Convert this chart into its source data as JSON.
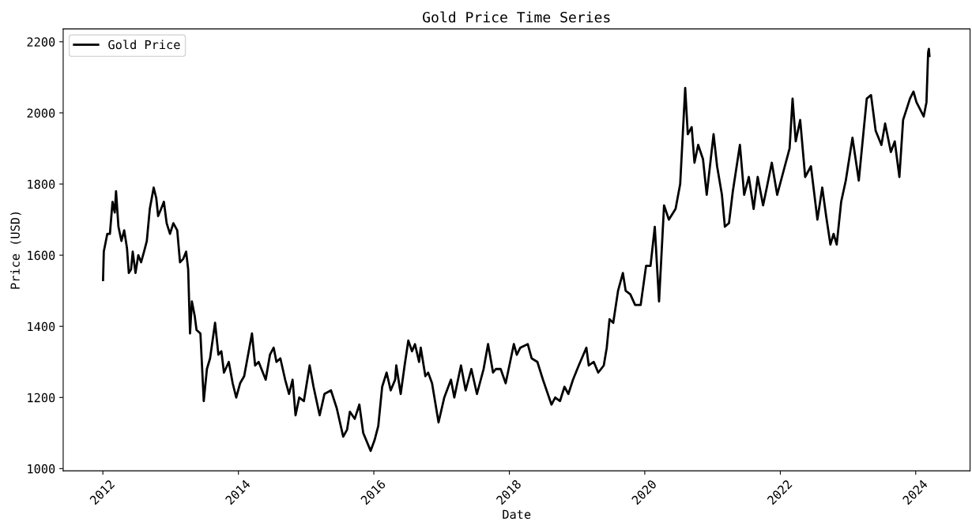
{
  "chart_data": {
    "type": "line",
    "title": "Gold Price Time Series",
    "xlabel": "Date",
    "ylabel": "Price (USD)",
    "xlim": [
      "2011-06-01",
      "2024-10-20"
    ],
    "xticks": [
      {
        "value": "2012-01-01",
        "label": "2012"
      },
      {
        "value": "2014-01-01",
        "label": "2014"
      },
      {
        "value": "2016-01-01",
        "label": "2016"
      },
      {
        "value": "2018-01-01",
        "label": "2018"
      },
      {
        "value": "2020-01-01",
        "label": "2020"
      },
      {
        "value": "2022-01-01",
        "label": "2022"
      },
      {
        "value": "2024-01-01",
        "label": "2024"
      }
    ],
    "ylim": [
      994,
      2236
    ],
    "yticks": [
      1000,
      1200,
      1400,
      1600,
      1800,
      2000,
      2200
    ],
    "legend": "top left",
    "grid": false,
    "line_style": "solid",
    "marker": "none",
    "x": [
      "2012-01-02",
      "2012-01-06",
      "2012-01-25",
      "2012-02-08",
      "2012-02-22",
      "2012-03-05",
      "2012-03-12",
      "2012-03-25",
      "2012-04-10",
      "2012-04-25",
      "2012-05-10",
      "2012-05-20",
      "2012-06-01",
      "2012-06-10",
      "2012-06-25",
      "2012-07-10",
      "2012-07-25",
      "2012-08-10",
      "2012-08-25",
      "2012-09-10",
      "2012-10-01",
      "2012-10-15",
      "2012-10-25",
      "2012-11-10",
      "2012-11-25",
      "2012-12-10",
      "2012-12-28",
      "2013-01-15",
      "2013-02-05",
      "2013-02-20",
      "2013-03-10",
      "2013-03-25",
      "2013-04-05",
      "2013-04-15",
      "2013-04-25",
      "2013-05-10",
      "2013-05-20",
      "2013-06-10",
      "2013-06-28",
      "2013-07-15",
      "2013-08-01",
      "2013-08-28",
      "2013-09-15",
      "2013-10-01",
      "2013-10-15",
      "2013-11-10",
      "2013-12-01",
      "2013-12-20",
      "2014-01-10",
      "2014-02-01",
      "2014-03-01",
      "2014-03-15",
      "2014-04-01",
      "2014-04-20",
      "2014-05-28",
      "2014-06-20",
      "2014-07-10",
      "2014-07-25",
      "2014-08-15",
      "2014-09-10",
      "2014-10-01",
      "2014-10-20",
      "2014-11-05",
      "2014-11-25",
      "2014-12-20",
      "2015-01-20",
      "2015-02-10",
      "2015-03-15",
      "2015-04-10",
      "2015-05-15",
      "2015-06-15",
      "2015-07-20",
      "2015-08-10",
      "2015-08-25",
      "2015-09-20",
      "2015-10-15",
      "2015-11-05",
      "2015-12-15",
      "2016-01-05",
      "2016-01-25",
      "2016-02-15",
      "2016-03-10",
      "2016-04-01",
      "2016-04-25",
      "2016-05-01",
      "2016-05-25",
      "2016-06-15",
      "2016-07-05",
      "2016-07-25",
      "2016-08-10",
      "2016-09-01",
      "2016-09-10",
      "2016-10-05",
      "2016-10-20",
      "2016-11-10",
      "2016-12-15",
      "2017-01-15",
      "2017-02-20",
      "2017-03-10",
      "2017-04-15",
      "2017-05-10",
      "2017-06-10",
      "2017-07-10",
      "2017-08-15",
      "2017-09-08",
      "2017-10-05",
      "2017-10-20",
      "2017-11-15",
      "2017-12-12",
      "2018-01-25",
      "2018-02-10",
      "2018-03-01",
      "2018-04-10",
      "2018-05-01",
      "2018-06-01",
      "2018-07-01",
      "2018-08-16",
      "2018-09-05",
      "2018-10-01",
      "2018-10-25",
      "2018-11-15",
      "2018-12-10",
      "2019-01-10",
      "2019-02-20",
      "2019-03-05",
      "2019-04-01",
      "2019-04-25",
      "2019-05-25",
      "2019-06-10",
      "2019-06-25",
      "2019-07-15",
      "2019-08-10",
      "2019-09-05",
      "2019-09-20",
      "2019-10-15",
      "2019-11-10",
      "2019-12-10",
      "2020-01-08",
      "2020-02-01",
      "2020-02-24",
      "2020-03-18",
      "2020-04-14",
      "2020-05-10",
      "2020-06-15",
      "2020-07-10",
      "2020-08-06",
      "2020-08-20",
      "2020-09-10",
      "2020-09-25",
      "2020-10-15",
      "2020-11-10",
      "2020-11-30",
      "2021-01-06",
      "2021-01-25",
      "2021-02-20",
      "2021-03-08",
      "2021-03-30",
      "2021-04-20",
      "2021-05-28",
      "2021-06-20",
      "2021-07-15",
      "2021-08-10",
      "2021-09-01",
      "2021-09-30",
      "2021-10-20",
      "2021-11-16",
      "2021-12-15",
      "2022-01-20",
      "2022-02-20",
      "2022-03-08",
      "2022-03-25",
      "2022-04-18",
      "2022-05-15",
      "2022-06-15",
      "2022-07-20",
      "2022-08-15",
      "2022-09-05",
      "2022-09-28",
      "2022-10-15",
      "2022-11-01",
      "2022-11-25",
      "2022-12-20",
      "2023-01-25",
      "2023-02-28",
      "2023-04-12",
      "2023-05-05",
      "2023-05-30",
      "2023-06-30",
      "2023-07-20",
      "2023-08-20",
      "2023-09-10",
      "2023-10-05",
      "2023-10-25",
      "2023-12-01",
      "2023-12-20",
      "2024-01-05",
      "2024-02-13",
      "2024-02-28",
      "2024-03-08",
      "2024-03-12",
      "2024-03-15"
    ],
    "series": [
      {
        "name": "Gold Price",
        "color": "#000000",
        "values": [
          1530,
          1610,
          1660,
          1660,
          1750,
          1720,
          1780,
          1680,
          1640,
          1670,
          1620,
          1550,
          1560,
          1610,
          1550,
          1600,
          1580,
          1610,
          1640,
          1730,
          1790,
          1760,
          1710,
          1730,
          1750,
          1690,
          1660,
          1690,
          1670,
          1580,
          1590,
          1610,
          1560,
          1380,
          1470,
          1430,
          1390,
          1380,
          1190,
          1280,
          1310,
          1410,
          1320,
          1330,
          1270,
          1300,
          1240,
          1200,
          1240,
          1260,
          1340,
          1380,
          1290,
          1300,
          1250,
          1320,
          1340,
          1300,
          1310,
          1250,
          1210,
          1250,
          1150,
          1200,
          1190,
          1290,
          1230,
          1150,
          1210,
          1220,
          1170,
          1090,
          1110,
          1160,
          1140,
          1180,
          1100,
          1050,
          1080,
          1120,
          1230,
          1270,
          1220,
          1250,
          1290,
          1210,
          1290,
          1360,
          1330,
          1350,
          1300,
          1340,
          1260,
          1270,
          1240,
          1130,
          1200,
          1250,
          1200,
          1290,
          1220,
          1280,
          1210,
          1280,
          1350,
          1270,
          1280,
          1280,
          1240,
          1350,
          1320,
          1340,
          1350,
          1310,
          1300,
          1250,
          1180,
          1200,
          1190,
          1230,
          1210,
          1250,
          1290,
          1340,
          1290,
          1300,
          1270,
          1290,
          1340,
          1420,
          1410,
          1500,
          1550,
          1500,
          1490,
          1460,
          1460,
          1570,
          1570,
          1680,
          1470,
          1740,
          1700,
          1730,
          1800,
          2070,
          1940,
          1960,
          1860,
          1910,
          1870,
          1770,
          1940,
          1850,
          1770,
          1680,
          1690,
          1780,
          1910,
          1770,
          1820,
          1730,
          1820,
          1740,
          1790,
          1860,
          1770,
          1840,
          1900,
          2040,
          1920,
          1980,
          1820,
          1850,
          1700,
          1790,
          1710,
          1630,
          1660,
          1630,
          1750,
          1810,
          1930,
          1810,
          2040,
          2050,
          1950,
          1910,
          1970,
          1890,
          1920,
          1820,
          1980,
          2040,
          2060,
          2030,
          1990,
          2030,
          2170,
          2180,
          2160
        ]
      }
    ]
  }
}
